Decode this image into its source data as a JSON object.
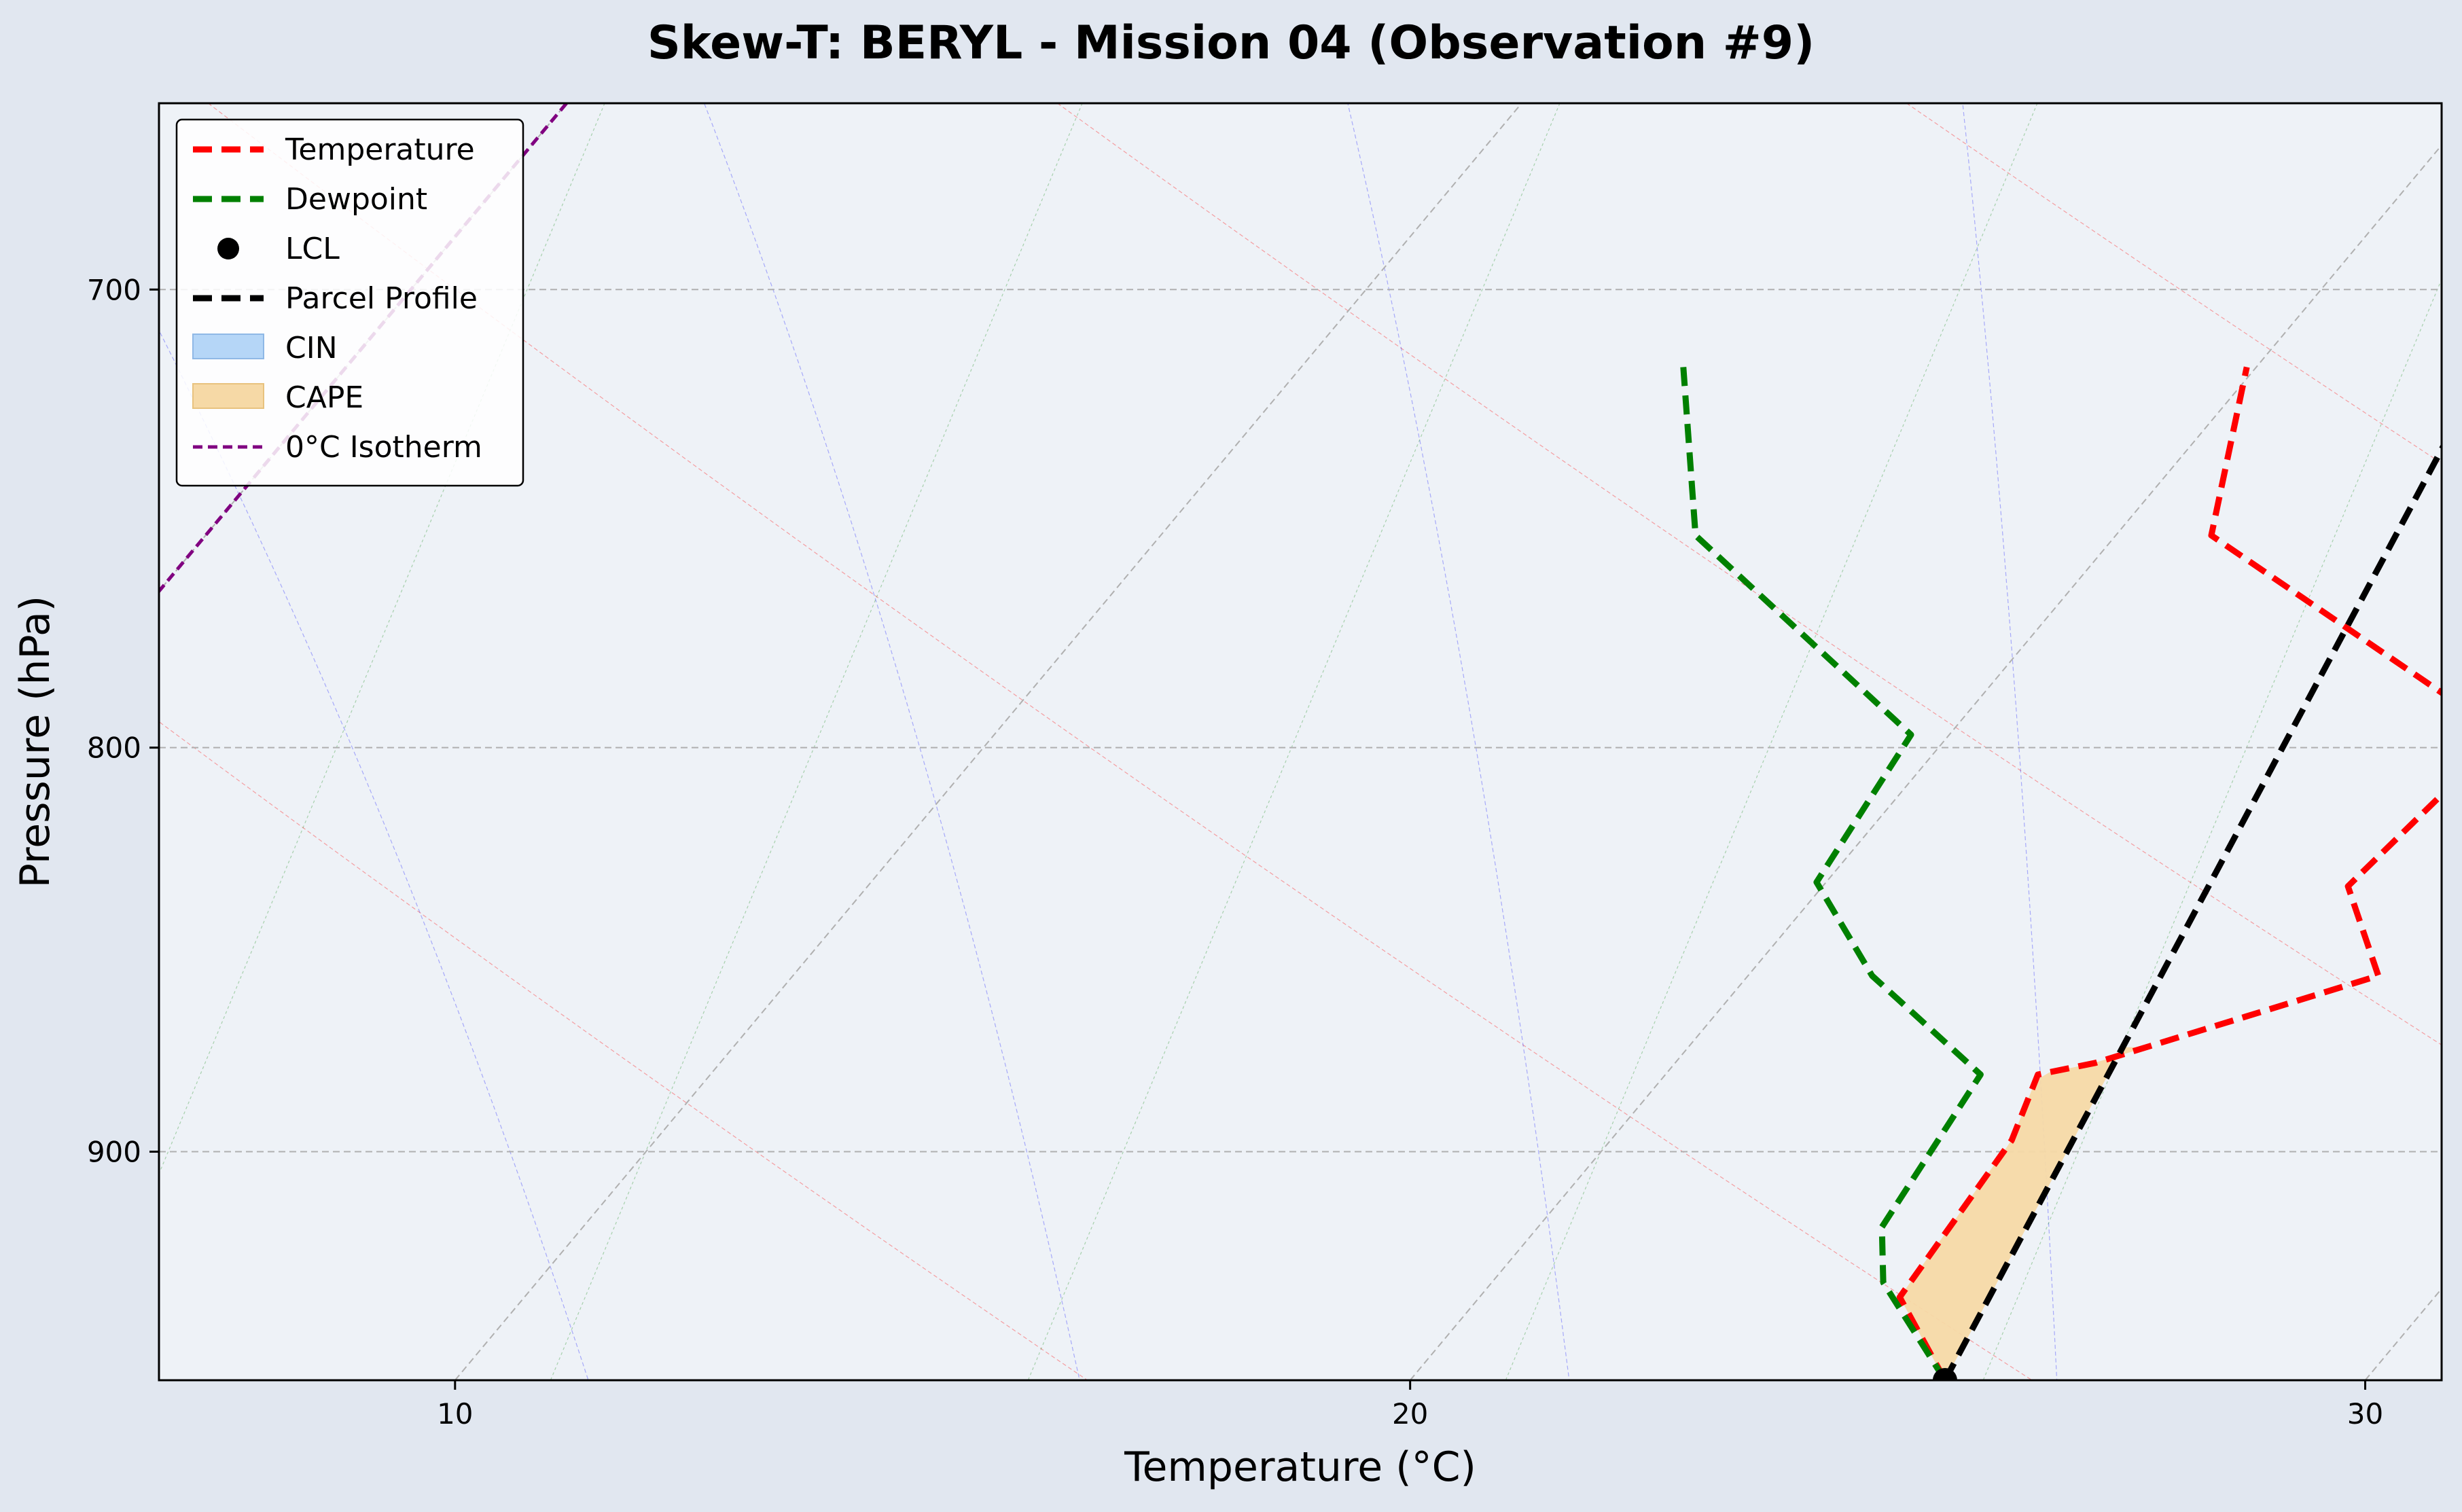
{
  "chart_data": {
    "type": "line",
    "title": "Skew-T: BERYL - Mission 04 (Observation #9)",
    "xlabel": "Temperature (°C)",
    "ylabel": "Pressure (hPa)",
    "xlim": [
      6.9,
      30.8
    ],
    "ylim": [
      962,
      663
    ],
    "y_scale": "log",
    "skew": "temperature lines slanted to the right with height",
    "x_ticks": [
      10,
      20,
      30
    ],
    "x_tick_labels": [
      "10",
      "20",
      "30"
    ],
    "y_ticks": [
      700,
      800,
      900
    ],
    "y_tick_labels": [
      "700",
      "800",
      "900"
    ],
    "grid": true,
    "legend_position": "top-left",
    "legend": [
      {
        "label": "Temperature",
        "color": "#ff0000",
        "style": "dashed-thick"
      },
      {
        "label": "Dewpoint",
        "color": "#008000",
        "style": "dashed-thick"
      },
      {
        "label": "LCL",
        "color": "#000000",
        "style": "marker"
      },
      {
        "label": "Parcel Profile",
        "color": "#000000",
        "style": "dashed-thick"
      },
      {
        "label": "CIN",
        "color": "#b5d6f7",
        "style": "patch"
      },
      {
        "label": "CAPE",
        "color": "#f6d9a6",
        "style": "patch"
      },
      {
        "label": "0°C Isotherm",
        "color": "#800080",
        "style": "dashed"
      }
    ],
    "series": [
      {
        "name": "Temperature",
        "color": "#ff0000",
        "points": [
          {
            "p": 962,
            "t": 25.6
          },
          {
            "p": 939,
            "t": 24.4
          },
          {
            "p": 897,
            "t": 24.2
          },
          {
            "p": 880,
            "t": 23.9
          },
          {
            "p": 877,
            "t": 24.4
          },
          {
            "p": 855,
            "t": 26.6
          },
          {
            "p": 833,
            "t": 25.5
          },
          {
            "p": 797,
            "t": 25.8
          },
          {
            "p": 752,
            "t": 21.0
          },
          {
            "p": 716,
            "t": 19.9
          }
        ]
      },
      {
        "name": "Dewpoint",
        "color": "#008000",
        "points": [
          {
            "p": 962,
            "t": 25.6
          },
          {
            "p": 935,
            "t": 24.1
          },
          {
            "p": 920,
            "t": 23.6
          },
          {
            "p": 880,
            "t": 23.3
          },
          {
            "p": 855,
            "t": 21.3
          },
          {
            "p": 832,
            "t": 19.9
          },
          {
            "p": 797,
            "t": 19.6
          },
          {
            "p": 752,
            "t": 15.6
          },
          {
            "p": 716,
            "t": 14.0
          }
        ]
      },
      {
        "name": "Parcel Profile",
        "color": "#000000",
        "points": [
          {
            "p": 962,
            "t": 25.6
          },
          {
            "p": 716,
            "t": 22.4
          }
        ]
      },
      {
        "name": "0°C Isotherm",
        "color": "#800080",
        "points": [
          {
            "p": 663,
            "t": 0
          },
          {
            "p": 800,
            "t": 0
          }
        ]
      }
    ],
    "lcl": {
      "p": 962,
      "t": 25.6
    },
    "cape": {
      "p_bottom": 962,
      "p_top": 873
    },
    "background_lines": {
      "isotherms_t": [
        10,
        20,
        30
      ],
      "dry_adiabats_theta": [
        293,
        303,
        313,
        323,
        333,
        343
      ],
      "moist_adiabats_t": [
        8,
        13,
        18,
        23,
        28,
        33,
        38
      ],
      "mixing_ratios_t": [
        6,
        11,
        16,
        21,
        26,
        31
      ]
    }
  }
}
